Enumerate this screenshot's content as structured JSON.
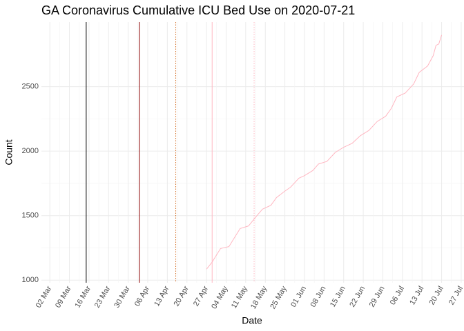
{
  "chart_data": {
    "type": "line",
    "title": "GA Coronavirus Cumulative ICU Bed Use on 2020-07-21",
    "x_label": "Date",
    "y_label": "Count",
    "xlim": [
      "28 Feb",
      "28 Jul"
    ],
    "xticks": [
      "02 Mar",
      "09 Mar",
      "16 Mar",
      "23 Mar",
      "30 Mar",
      "06 Apr",
      "13 Apr",
      "20 Apr",
      "27 Apr",
      "04 May",
      "11 May",
      "18 May",
      "25 May",
      "01 Jun",
      "08 Jun",
      "15 Jun",
      "22 Jun",
      "29 Jun",
      "06 Jul",
      "13 Jul",
      "20 Jul",
      "27 Jul"
    ],
    "ylim": [
      980,
      3000
    ],
    "yticks": [
      1000,
      1500,
      2000,
      2500
    ],
    "grid": true,
    "x": [
      "27 Apr",
      "29 Apr",
      "02 May",
      "05 May",
      "07 May",
      "09 May",
      "12 May",
      "15 May",
      "17 May",
      "20 May",
      "22 May",
      "25 May",
      "27 May",
      "30 May",
      "01 Jun",
      "04 Jun",
      "06 Jun",
      "09 Jun",
      "12 Jun",
      "15 Jun",
      "18 Jun",
      "21 Jun",
      "24 Jun",
      "27 Jun",
      "30 Jun",
      "02 Jul",
      "04 Jul",
      "07 Jul",
      "10 Jul",
      "12 Jul",
      "15 Jul",
      "17 Jul",
      "18 Jul",
      "19 Jul",
      "20 Jul"
    ],
    "series": [
      {
        "color": "#ffb6c1",
        "values": [
          1085,
          1140,
          1245,
          1260,
          1330,
          1400,
          1420,
          1500,
          1550,
          1580,
          1640,
          1690,
          1720,
          1790,
          1810,
          1850,
          1900,
          1920,
          1990,
          2030,
          2060,
          2120,
          2160,
          2230,
          2270,
          2330,
          2420,
          2450,
          2520,
          2610,
          2660,
          2740,
          2820,
          2830,
          2900
        ]
      }
    ],
    "vlines": [
      {
        "x": "15 Mar",
        "color": "#000000",
        "dashed": false
      },
      {
        "x": "03 Apr",
        "color": "#8b0000",
        "dashed": false
      },
      {
        "x": "16 Apr",
        "color": "#d2691e",
        "dashed": true
      },
      {
        "x": "29 Apr",
        "color": "#ffb6c1",
        "dashed": false
      },
      {
        "x": "14 May",
        "color": "#ffb6c1",
        "dashed": true
      }
    ]
  }
}
